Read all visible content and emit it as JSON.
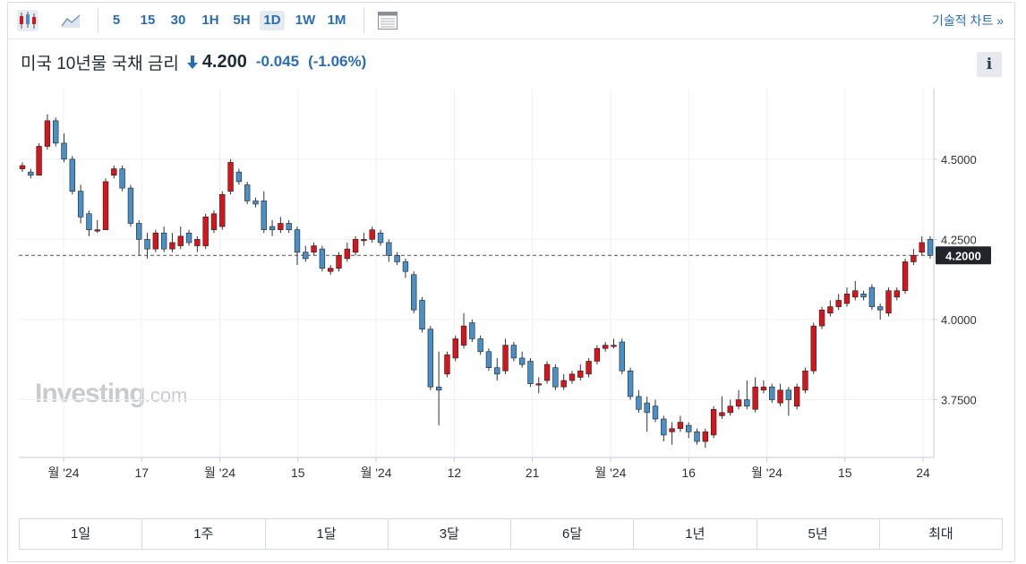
{
  "toolbar": {
    "timeframes": [
      "5",
      "15",
      "30",
      "1H",
      "5H",
      "1D",
      "1W",
      "1M"
    ],
    "active_timeframe": "1D",
    "technical_chart_label": "기술적 차트 »"
  },
  "header": {
    "instrument": "미국 10년물 국채 금리",
    "price": "4.200",
    "change": "-0.045",
    "change_pct": "(-1.06%)",
    "change_color": "#2a6db4",
    "info_label": "i"
  },
  "watermark": {
    "brand": "Investing",
    "suffix": ".com"
  },
  "colors": {
    "up": "#d6141c",
    "down": "#4a90c8",
    "accent": "#2a6db4"
  },
  "ranges": [
    "1일",
    "1주",
    "1달",
    "3달",
    "6달",
    "1년",
    "5년",
    "최대"
  ],
  "chart_data": {
    "type": "candlestick",
    "ylim": [
      3.57,
      4.72
    ],
    "yticks": [
      "4.5000",
      "4.2500",
      "4.0000",
      "3.7500"
    ],
    "last_price_label": "4.2000",
    "last_price": 4.2,
    "xticks": [
      "월 '24",
      "17",
      "월 '24",
      "15",
      "월 '24",
      "12",
      "21",
      "월 '24",
      "16",
      "월 '24",
      "15",
      "24"
    ],
    "candles": [
      [
        4.47,
        4.48,
        4.46,
        4.49
      ],
      [
        4.46,
        4.45,
        4.44,
        4.47
      ],
      [
        4.45,
        4.54,
        4.45,
        4.55
      ],
      [
        4.54,
        4.62,
        4.53,
        4.64
      ],
      [
        4.62,
        4.55,
        4.54,
        4.63
      ],
      [
        4.55,
        4.5,
        4.49,
        4.58
      ],
      [
        4.5,
        4.4,
        4.39,
        4.51
      ],
      [
        4.4,
        4.32,
        4.3,
        4.42
      ],
      [
        4.33,
        4.28,
        4.26,
        4.34
      ],
      [
        4.28,
        4.28,
        4.27,
        4.31
      ],
      [
        4.28,
        4.43,
        4.28,
        4.44
      ],
      [
        4.45,
        4.47,
        4.44,
        4.48
      ],
      [
        4.47,
        4.41,
        4.4,
        4.48
      ],
      [
        4.41,
        4.3,
        4.29,
        4.42
      ],
      [
        4.3,
        4.25,
        4.2,
        4.31
      ],
      [
        4.25,
        4.22,
        4.19,
        4.27
      ],
      [
        4.22,
        4.27,
        4.21,
        4.28
      ],
      [
        4.27,
        4.22,
        4.21,
        4.29
      ],
      [
        4.22,
        4.24,
        4.21,
        4.27
      ],
      [
        4.23,
        4.26,
        4.22,
        4.29
      ],
      [
        4.27,
        4.24,
        4.23,
        4.28
      ],
      [
        4.23,
        4.25,
        4.21,
        4.26
      ],
      [
        4.23,
        4.32,
        4.22,
        4.33
      ],
      [
        4.28,
        4.33,
        4.27,
        4.34
      ],
      [
        4.29,
        4.39,
        4.28,
        4.4
      ],
      [
        4.4,
        4.49,
        4.39,
        4.5
      ],
      [
        4.46,
        4.43,
        4.42,
        4.47
      ],
      [
        4.42,
        4.37,
        4.36,
        4.43
      ],
      [
        4.37,
        4.36,
        4.35,
        4.38
      ],
      [
        4.37,
        4.28,
        4.27,
        4.4
      ],
      [
        4.29,
        4.28,
        4.26,
        4.31
      ],
      [
        4.28,
        4.3,
        4.27,
        4.32
      ],
      [
        4.3,
        4.28,
        4.27,
        4.31
      ],
      [
        4.28,
        4.21,
        4.17,
        4.29
      ],
      [
        4.21,
        4.19,
        4.18,
        4.23
      ],
      [
        4.21,
        4.23,
        4.2,
        4.24
      ],
      [
        4.22,
        4.16,
        4.15,
        4.23
      ],
      [
        4.15,
        4.16,
        4.14,
        4.17
      ],
      [
        4.16,
        4.2,
        4.15,
        4.21
      ],
      [
        4.19,
        4.22,
        4.18,
        4.24
      ],
      [
        4.21,
        4.25,
        4.2,
        4.26
      ],
      [
        4.25,
        4.25,
        4.23,
        4.27
      ],
      [
        4.25,
        4.28,
        4.24,
        4.29
      ],
      [
        4.27,
        4.24,
        4.23,
        4.28
      ],
      [
        4.24,
        4.2,
        4.18,
        4.25
      ],
      [
        4.2,
        4.18,
        4.17,
        4.21
      ],
      [
        4.18,
        4.15,
        4.13,
        4.19
      ],
      [
        4.14,
        4.03,
        4.02,
        4.15
      ],
      [
        4.06,
        3.97,
        3.96,
        4.07
      ],
      [
        3.97,
        3.79,
        3.78,
        3.98
      ],
      [
        3.79,
        3.78,
        3.67,
        3.9
      ],
      [
        3.83,
        3.89,
        3.82,
        3.9
      ],
      [
        3.88,
        3.94,
        3.87,
        3.95
      ],
      [
        3.92,
        3.98,
        3.91,
        4.02
      ],
      [
        3.99,
        3.94,
        3.93,
        4.0
      ],
      [
        3.94,
        3.9,
        3.89,
        3.95
      ],
      [
        3.9,
        3.85,
        3.84,
        3.91
      ],
      [
        3.85,
        3.83,
        3.81,
        3.88
      ],
      [
        3.84,
        3.92,
        3.83,
        3.94
      ],
      [
        3.92,
        3.88,
        3.87,
        3.93
      ],
      [
        3.88,
        3.86,
        3.85,
        3.9
      ],
      [
        3.87,
        3.8,
        3.79,
        3.88
      ],
      [
        3.8,
        3.8,
        3.77,
        3.82
      ],
      [
        3.81,
        3.86,
        3.8,
        3.87
      ],
      [
        3.85,
        3.79,
        3.78,
        3.86
      ],
      [
        3.79,
        3.81,
        3.78,
        3.83
      ],
      [
        3.81,
        3.83,
        3.8,
        3.84
      ],
      [
        3.82,
        3.84,
        3.81,
        3.86
      ],
      [
        3.83,
        3.87,
        3.82,
        3.88
      ],
      [
        3.87,
        3.91,
        3.86,
        3.92
      ],
      [
        3.91,
        3.92,
        3.9,
        3.93
      ],
      [
        3.92,
        3.92,
        3.91,
        3.94
      ],
      [
        3.93,
        3.84,
        3.83,
        3.94
      ],
      [
        3.84,
        3.76,
        3.75,
        3.85
      ],
      [
        3.76,
        3.72,
        3.71,
        3.78
      ],
      [
        3.74,
        3.71,
        3.65,
        3.76
      ],
      [
        3.73,
        3.69,
        3.68,
        3.75
      ],
      [
        3.69,
        3.64,
        3.62,
        3.7
      ],
      [
        3.65,
        3.66,
        3.61,
        3.68
      ],
      [
        3.66,
        3.68,
        3.65,
        3.7
      ],
      [
        3.67,
        3.65,
        3.63,
        3.68
      ],
      [
        3.65,
        3.62,
        3.61,
        3.66
      ],
      [
        3.62,
        3.65,
        3.6,
        3.66
      ],
      [
        3.64,
        3.72,
        3.63,
        3.73
      ],
      [
        3.7,
        3.71,
        3.69,
        3.76
      ],
      [
        3.71,
        3.73,
        3.7,
        3.75
      ],
      [
        3.73,
        3.75,
        3.72,
        3.78
      ],
      [
        3.75,
        3.73,
        3.72,
        3.81
      ],
      [
        3.72,
        3.79,
        3.71,
        3.82
      ],
      [
        3.78,
        3.79,
        3.77,
        3.81
      ],
      [
        3.79,
        3.75,
        3.74,
        3.8
      ],
      [
        3.74,
        3.78,
        3.73,
        3.8
      ],
      [
        3.78,
        3.75,
        3.7,
        3.79
      ],
      [
        3.73,
        3.79,
        3.72,
        3.8
      ],
      [
        3.78,
        3.84,
        3.77,
        3.85
      ],
      [
        3.84,
        3.98,
        3.83,
        3.99
      ],
      [
        3.98,
        4.03,
        3.97,
        4.04
      ],
      [
        4.02,
        4.04,
        4.01,
        4.06
      ],
      [
        4.04,
        4.06,
        4.03,
        4.08
      ],
      [
        4.05,
        4.08,
        4.04,
        4.1
      ],
      [
        4.07,
        4.09,
        4.06,
        4.12
      ],
      [
        4.08,
        4.07,
        4.06,
        4.09
      ],
      [
        4.1,
        4.04,
        4.03,
        4.11
      ],
      [
        4.04,
        4.03,
        4.0,
        4.05
      ],
      [
        4.02,
        4.09,
        4.01,
        4.1
      ],
      [
        4.07,
        4.09,
        4.06,
        4.1
      ],
      [
        4.09,
        4.18,
        4.08,
        4.19
      ],
      [
        4.18,
        4.2,
        4.17,
        4.22
      ],
      [
        4.21,
        4.24,
        4.2,
        4.26
      ],
      [
        4.25,
        4.2,
        4.19,
        4.26
      ]
    ]
  }
}
